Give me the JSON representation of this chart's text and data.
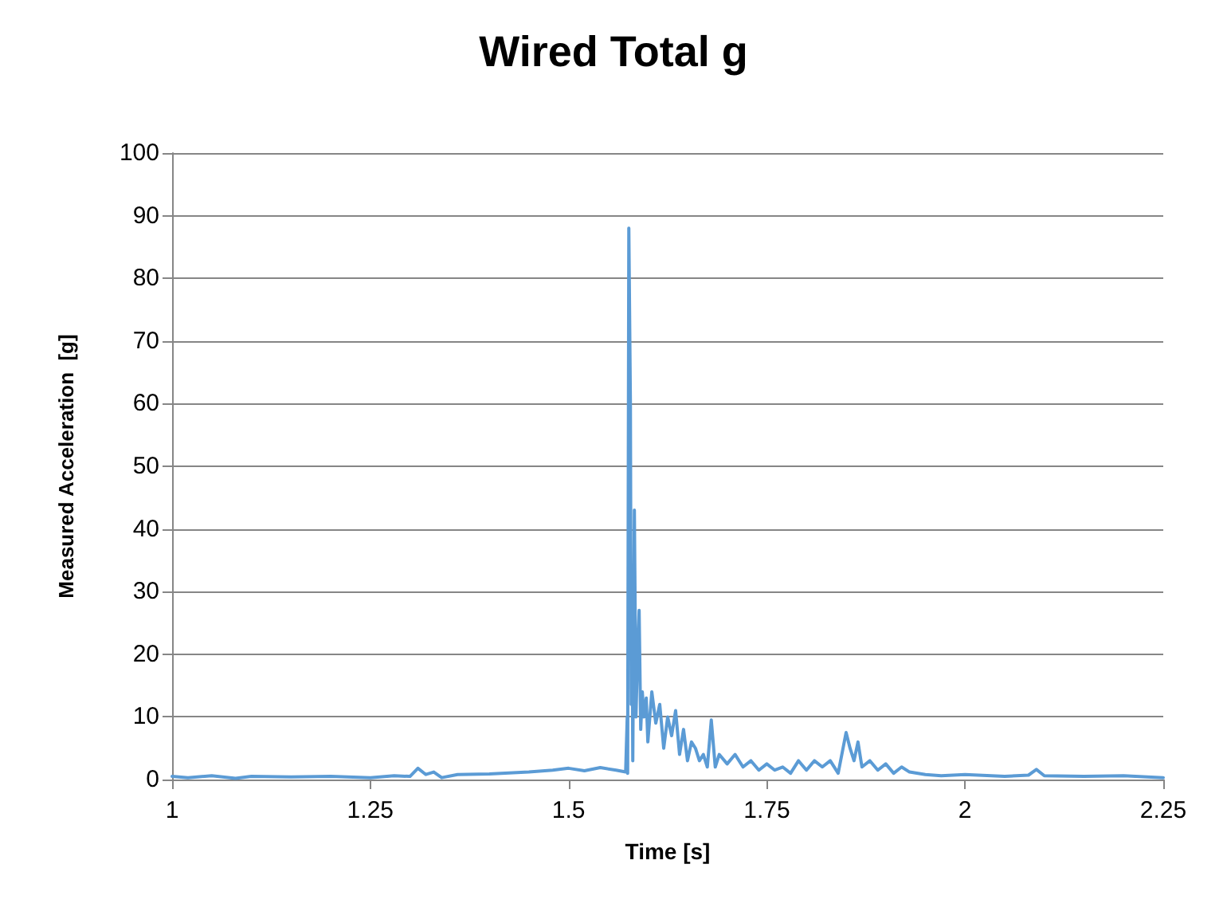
{
  "chart_data": {
    "type": "line",
    "title": "Wired Total g",
    "xlabel": "Time [s]",
    "ylabel": "Measured Acceleration  [g]",
    "x": [
      1.0,
      1.02,
      1.05,
      1.08,
      1.1,
      1.15,
      1.2,
      1.25,
      1.28,
      1.3,
      1.31,
      1.32,
      1.33,
      1.34,
      1.36,
      1.4,
      1.45,
      1.48,
      1.5,
      1.52,
      1.54,
      1.56,
      1.572,
      1.574,
      1.5745,
      1.576,
      1.578,
      1.579,
      1.58,
      1.581,
      1.583,
      1.585,
      1.587,
      1.589,
      1.591,
      1.593,
      1.595,
      1.598,
      1.6,
      1.605,
      1.61,
      1.615,
      1.62,
      1.625,
      1.63,
      1.635,
      1.64,
      1.645,
      1.65,
      1.655,
      1.66,
      1.665,
      1.67,
      1.675,
      1.68,
      1.685,
      1.69,
      1.7,
      1.71,
      1.72,
      1.73,
      1.74,
      1.75,
      1.76,
      1.77,
      1.78,
      1.79,
      1.8,
      1.81,
      1.82,
      1.83,
      1.84,
      1.85,
      1.855,
      1.86,
      1.865,
      1.87,
      1.88,
      1.89,
      1.9,
      1.91,
      1.92,
      1.93,
      1.95,
      1.97,
      2.0,
      2.05,
      2.08,
      2.09,
      2.1,
      2.15,
      2.2,
      2.25
    ],
    "series": [
      {
        "color": "#5b9bd5",
        "values": [
          0.5,
          0.3,
          0.6,
          0.2,
          0.5,
          0.4,
          0.5,
          0.3,
          0.6,
          0.5,
          1.8,
          0.8,
          1.2,
          0.3,
          0.8,
          0.9,
          1.2,
          1.5,
          1.8,
          1.4,
          1.9,
          1.5,
          1.2,
          10,
          1,
          88,
          60,
          12,
          30,
          3,
          43,
          10,
          20,
          27,
          8,
          14,
          10,
          13,
          6,
          14,
          9,
          12,
          5,
          10,
          7,
          11,
          4,
          8,
          3,
          6,
          5,
          3,
          4,
          2,
          9.5,
          2,
          4,
          2.5,
          4,
          2,
          3,
          1.5,
          2.5,
          1.5,
          2,
          1,
          3,
          1.5,
          3,
          2,
          3,
          1,
          7.5,
          5,
          3,
          6,
          2,
          3,
          1.5,
          2.5,
          1,
          2,
          1.2,
          0.8,
          0.6,
          0.8,
          0.5,
          0.7,
          1.6,
          0.6,
          0.5,
          0.6,
          0.3
        ]
      }
    ],
    "xlim": [
      1,
      2.25
    ],
    "xticks": [
      1,
      1.25,
      1.5,
      1.75,
      2,
      2.25
    ],
    "ylim": [
      0,
      100
    ],
    "yticks": [
      0,
      10,
      20,
      30,
      40,
      50,
      60,
      70,
      80,
      90,
      100
    ],
    "grid": "y",
    "marker": "none",
    "line_style": "solid"
  }
}
